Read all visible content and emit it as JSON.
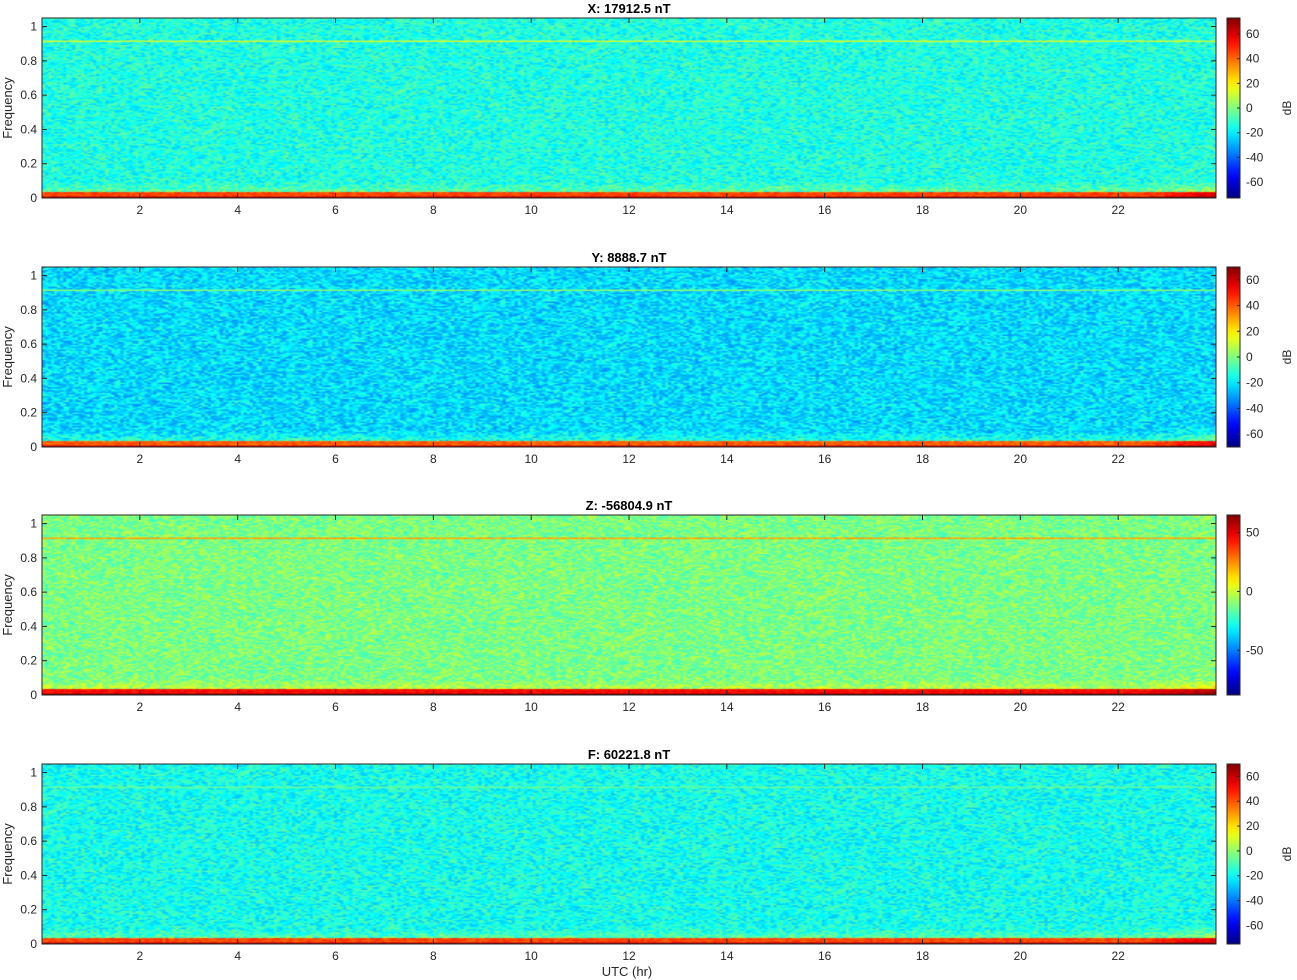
{
  "figure": {
    "xlabel": "UTC (hr)",
    "colormap": "jet",
    "colormap_stops": [
      "#00008f",
      "#0000ff",
      "#00ffff",
      "#ffff00",
      "#ff0000",
      "#800000"
    ]
  },
  "chart_data": [
    {
      "type": "heatmap",
      "title": "X: 17912.5 nT",
      "xlabel": "",
      "ylabel": "Frequency",
      "colorbar_label": "dB",
      "xlim": [
        0,
        24
      ],
      "ylim": [
        0,
        1.05
      ],
      "clim": [
        -73,
        73
      ],
      "x_ticks": [
        2,
        4,
        6,
        8,
        10,
        12,
        14,
        16,
        18,
        20,
        22
      ],
      "y_ticks": [
        0,
        0.2,
        0.4,
        0.6,
        0.8,
        1
      ],
      "cbar_ticks": [
        -60,
        -40,
        -20,
        0,
        20,
        40,
        60
      ],
      "background_dB": -14,
      "low_freq_dB": 45,
      "line_frequency": 0.92,
      "line_dB": 8
    },
    {
      "type": "heatmap",
      "title": "Y: 8888.7 nT",
      "xlabel": "",
      "ylabel": "Frequency",
      "colorbar_label": "dB",
      "xlim": [
        0,
        24
      ],
      "ylim": [
        0,
        1.05
      ],
      "clim": [
        -70,
        70
      ],
      "x_ticks": [
        2,
        4,
        6,
        8,
        10,
        12,
        14,
        16,
        18,
        20,
        22
      ],
      "y_ticks": [
        0,
        0.2,
        0.4,
        0.6,
        0.8,
        1
      ],
      "cbar_ticks": [
        -60,
        -40,
        -20,
        0,
        20,
        40,
        60
      ],
      "background_dB": -22,
      "low_freq_dB": 40,
      "line_frequency": 0.92,
      "line_dB": -2
    },
    {
      "type": "heatmap",
      "title": "Z: -56804.9 nT",
      "xlabel": "",
      "ylabel": "Frequency",
      "colorbar_label": "",
      "xlim": [
        0,
        24
      ],
      "ylim": [
        0,
        1.05
      ],
      "clim": [
        -88,
        65
      ],
      "x_ticks": [
        2,
        4,
        6,
        8,
        10,
        12,
        14,
        16,
        18,
        20,
        22
      ],
      "y_ticks": [
        0,
        0.2,
        0.4,
        0.6,
        0.8,
        1
      ],
      "cbar_ticks": [
        -50,
        0,
        50
      ],
      "background_dB": -12,
      "low_freq_dB": 45,
      "line_frequency": 0.92,
      "line_dB": 18
    },
    {
      "type": "heatmap",
      "title": "F: 60221.8 nT",
      "xlabel": "UTC (hr)",
      "ylabel": "Frequency",
      "colorbar_label": "dB",
      "xlim": [
        0,
        24
      ],
      "ylim": [
        0,
        1.05
      ],
      "clim": [
        -75,
        70
      ],
      "x_ticks": [
        2,
        4,
        6,
        8,
        10,
        12,
        14,
        16,
        18,
        20,
        22
      ],
      "y_ticks": [
        0,
        0.2,
        0.4,
        0.6,
        0.8,
        1
      ],
      "cbar_ticks": [
        -60,
        -40,
        -20,
        0,
        20,
        40,
        60
      ],
      "background_dB": -18,
      "low_freq_dB": 42,
      "line_frequency": 0.92,
      "line_dB": -10
    }
  ]
}
